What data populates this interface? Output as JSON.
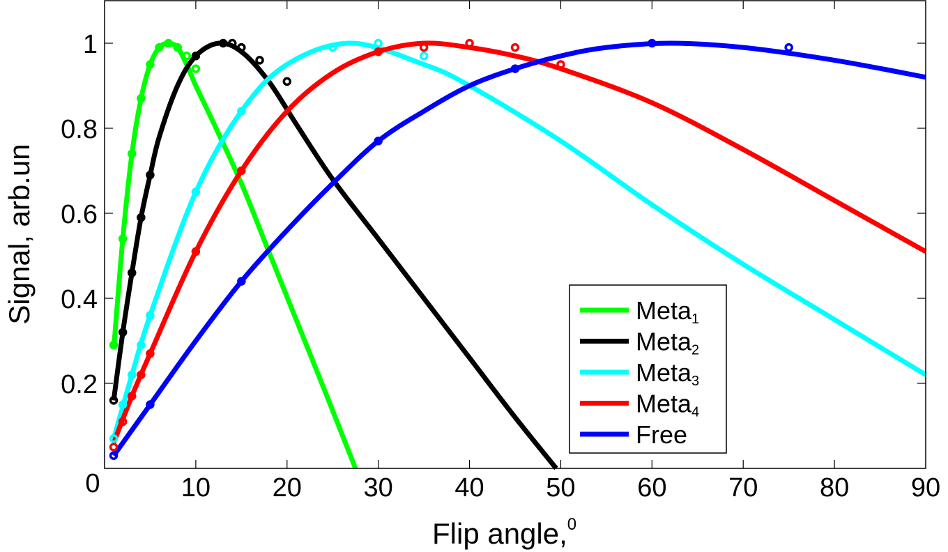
{
  "chart_data": {
    "type": "line",
    "title": "",
    "xlabel": "Flip angle,",
    "xlabel_sup": "0",
    "ylabel": "Signal, arb.un",
    "xlim": [
      0,
      90
    ],
    "ylim": [
      0,
      1.1
    ],
    "xticks": [
      0,
      10,
      20,
      30,
      40,
      50,
      60,
      70,
      80,
      90
    ],
    "xtick_labels": [
      "0",
      "10",
      "20",
      "30",
      "40",
      "50",
      "60",
      "70",
      "80",
      "90"
    ],
    "yticks": [
      0.2,
      0.4,
      0.6,
      0.8,
      1
    ],
    "ytick_labels": [
      "0.2",
      "0.4",
      "0.6",
      "0.8",
      "1"
    ],
    "grid": false,
    "legend_position": "bottom-right",
    "series": [
      {
        "name": "Meta",
        "sub": "1",
        "color": "#00ff00",
        "fit": [
          [
            1,
            0.28
          ],
          [
            2,
            0.54
          ],
          [
            3,
            0.74
          ],
          [
            4,
            0.87
          ],
          [
            5,
            0.95
          ],
          [
            6,
            0.99
          ],
          [
            7,
            1.0
          ],
          [
            8,
            0.99
          ],
          [
            9,
            0.95
          ],
          [
            10,
            0.9
          ],
          [
            12,
            0.81
          ],
          [
            15,
            0.67
          ],
          [
            18,
            0.51
          ],
          [
            21,
            0.35
          ],
          [
            24,
            0.19
          ],
          [
            27.5,
            0.0
          ]
        ],
        "points": [
          [
            1,
            0.29
          ],
          [
            2,
            0.54
          ],
          [
            3,
            0.74
          ],
          [
            4,
            0.87
          ],
          [
            5,
            0.95
          ],
          [
            6,
            0.99
          ],
          [
            7,
            1.0
          ],
          [
            8,
            0.99
          ],
          [
            9,
            0.97
          ],
          [
            10,
            0.94
          ]
        ]
      },
      {
        "name": "Meta",
        "sub": "2",
        "color": "#000000",
        "fit": [
          [
            1,
            0.16
          ],
          [
            2,
            0.32
          ],
          [
            3,
            0.46
          ],
          [
            4,
            0.59
          ],
          [
            5,
            0.69
          ],
          [
            6,
            0.78
          ],
          [
            8,
            0.9
          ],
          [
            10,
            0.97
          ],
          [
            12.5,
            1.0
          ],
          [
            15,
            0.98
          ],
          [
            18,
            0.91
          ],
          [
            21,
            0.81
          ],
          [
            25,
            0.68
          ],
          [
            30,
            0.54
          ],
          [
            35,
            0.4
          ],
          [
            40,
            0.26
          ],
          [
            45,
            0.12
          ],
          [
            49.5,
            0.0
          ]
        ],
        "points": [
          [
            1,
            0.16
          ],
          [
            2,
            0.32
          ],
          [
            3,
            0.46
          ],
          [
            4,
            0.59
          ],
          [
            5,
            0.69
          ],
          [
            10,
            0.97
          ],
          [
            13,
            1.0
          ],
          [
            14,
            1.0
          ],
          [
            15,
            0.99
          ],
          [
            17,
            0.96
          ],
          [
            20,
            0.91
          ]
        ]
      },
      {
        "name": "Meta",
        "sub": "3",
        "color": "#00ffff",
        "fit": [
          [
            1,
            0.07
          ],
          [
            3,
            0.22
          ],
          [
            5,
            0.36
          ],
          [
            10,
            0.65
          ],
          [
            15,
            0.84
          ],
          [
            20,
            0.95
          ],
          [
            27,
            1.0
          ],
          [
            35,
            0.95
          ],
          [
            40,
            0.9
          ],
          [
            50,
            0.77
          ],
          [
            60,
            0.62
          ],
          [
            70,
            0.48
          ],
          [
            80,
            0.35
          ],
          [
            90,
            0.22
          ]
        ],
        "points": [
          [
            1,
            0.07
          ],
          [
            2,
            0.15
          ],
          [
            3,
            0.22
          ],
          [
            4,
            0.29
          ],
          [
            5,
            0.36
          ],
          [
            10,
            0.65
          ],
          [
            15,
            0.84
          ],
          [
            25,
            0.99
          ],
          [
            30,
            1.0
          ],
          [
            35,
            0.97
          ]
        ]
      },
      {
        "name": "Meta",
        "sub": "4",
        "color": "#ff0000",
        "fit": [
          [
            1,
            0.06
          ],
          [
            3,
            0.17
          ],
          [
            5,
            0.27
          ],
          [
            10,
            0.51
          ],
          [
            15,
            0.7
          ],
          [
            20,
            0.84
          ],
          [
            25,
            0.93
          ],
          [
            30,
            0.98
          ],
          [
            35,
            1.0
          ],
          [
            40,
            0.99
          ],
          [
            45,
            0.97
          ],
          [
            50,
            0.94
          ],
          [
            60,
            0.86
          ],
          [
            70,
            0.75
          ],
          [
            80,
            0.63
          ],
          [
            90,
            0.51
          ]
        ],
        "points": [
          [
            1,
            0.05
          ],
          [
            2,
            0.11
          ],
          [
            3,
            0.17
          ],
          [
            4,
            0.22
          ],
          [
            5,
            0.27
          ],
          [
            10,
            0.51
          ],
          [
            15,
            0.7
          ],
          [
            30,
            0.98
          ],
          [
            35,
            0.99
          ],
          [
            40,
            1.0
          ],
          [
            45,
            0.99
          ],
          [
            50,
            0.95
          ]
        ]
      },
      {
        "name": "Free",
        "sub": "",
        "color": "#0000ff",
        "fit": [
          [
            1,
            0.03
          ],
          [
            5,
            0.15
          ],
          [
            10,
            0.3
          ],
          [
            15,
            0.44
          ],
          [
            20,
            0.56
          ],
          [
            25,
            0.67
          ],
          [
            30,
            0.77
          ],
          [
            35,
            0.84
          ],
          [
            40,
            0.9
          ],
          [
            45,
            0.94
          ],
          [
            50,
            0.97
          ],
          [
            55,
            0.99
          ],
          [
            62,
            1.0
          ],
          [
            70,
            0.99
          ],
          [
            80,
            0.96
          ],
          [
            90,
            0.92
          ]
        ],
        "points": [
          [
            1,
            0.03
          ],
          [
            5,
            0.15
          ],
          [
            15,
            0.44
          ],
          [
            30,
            0.77
          ],
          [
            45,
            0.94
          ],
          [
            60,
            1.0
          ],
          [
            75,
            0.99
          ]
        ]
      }
    ]
  }
}
